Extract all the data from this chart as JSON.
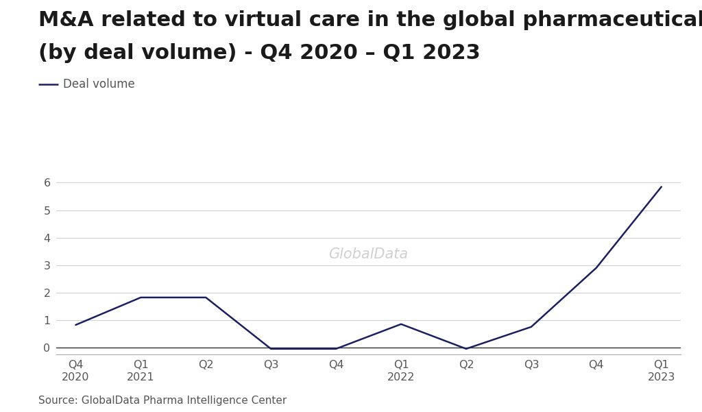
{
  "title_line1": "M&A related to virtual care in the global pharmaceutical industry",
  "title_line2": "(by deal volume) - Q4 2020 – Q1 2023",
  "x_labels": [
    "Q4\n2020",
    "Q1\n2021",
    "Q2",
    "Q3",
    "Q4",
    "Q1\n2022",
    "Q2",
    "Q3",
    "Q4",
    "Q1\n2023"
  ],
  "y_values": [
    0.82,
    1.82,
    1.82,
    -0.05,
    -0.05,
    0.85,
    -0.05,
    0.75,
    2.9,
    5.85
  ],
  "line_color": "#1b1f5f",
  "line_width": 1.8,
  "legend_label": "Deal volume",
  "y_min": -0.25,
  "y_max": 6.35,
  "y_ticks": [
    0,
    1,
    2,
    3,
    4,
    5,
    6
  ],
  "source_text": "Source: GlobalData Pharma Intelligence Center",
  "watermark_text": "GlobalData",
  "watermark_color": "#d0d0d0",
  "background_color": "#ffffff",
  "title_fontsize": 22,
  "axis_fontsize": 11.5,
  "legend_fontsize": 12,
  "source_fontsize": 11,
  "grid_color": "#d0d0d0",
  "text_color": "#1a1a1a",
  "axis_color": "#555555"
}
